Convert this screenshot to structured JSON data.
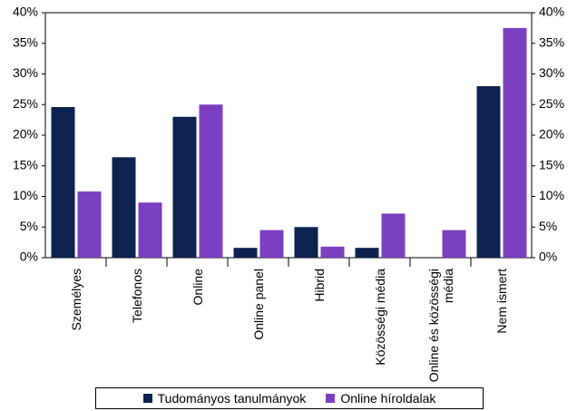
{
  "chart_data": {
    "type": "bar",
    "categories": [
      "Személyes",
      "Telefonos",
      "Online",
      "Online panel",
      "Hibrid",
      "Közösségi média",
      "Online és közösségi média",
      "Nem ismert"
    ],
    "series": [
      {
        "name": "Tudományos tanulmányok",
        "color": "#0e2250",
        "values": [
          24.6,
          16.4,
          23.0,
          1.6,
          5.0,
          1.6,
          0,
          28.0
        ]
      },
      {
        "name": "Online híroldalak",
        "color": "#7b3fbf",
        "values": [
          10.8,
          9.0,
          25.0,
          4.5,
          1.8,
          7.2,
          4.5,
          37.5
        ]
      }
    ],
    "ylim": [
      0,
      40
    ],
    "yticks": [
      {
        "value": 0,
        "label": "0%"
      },
      {
        "value": 5,
        "label": "5%"
      },
      {
        "value": 10,
        "label": "10%"
      },
      {
        "value": 15,
        "label": "15%"
      },
      {
        "value": 20,
        "label": "20%"
      },
      {
        "value": 25,
        "label": "25%"
      },
      {
        "value": 30,
        "label": "30%"
      },
      {
        "value": 35,
        "label": "35%"
      },
      {
        "value": 40,
        "label": "40%"
      }
    ],
    "y2lim": [
      0,
      40
    ],
    "y2ticks": [
      {
        "value": 0,
        "label": "0%"
      },
      {
        "value": 5,
        "label": "5%"
      },
      {
        "value": 10,
        "label": "10%"
      },
      {
        "value": 15,
        "label": "15%"
      },
      {
        "value": 20,
        "label": "20%"
      },
      {
        "value": 25,
        "label": "25%"
      },
      {
        "value": 30,
        "label": "30%"
      },
      {
        "value": 35,
        "label": "35%"
      },
      {
        "value": 40,
        "label": "40%"
      }
    ],
    "grid": false,
    "legend": "bottom"
  }
}
